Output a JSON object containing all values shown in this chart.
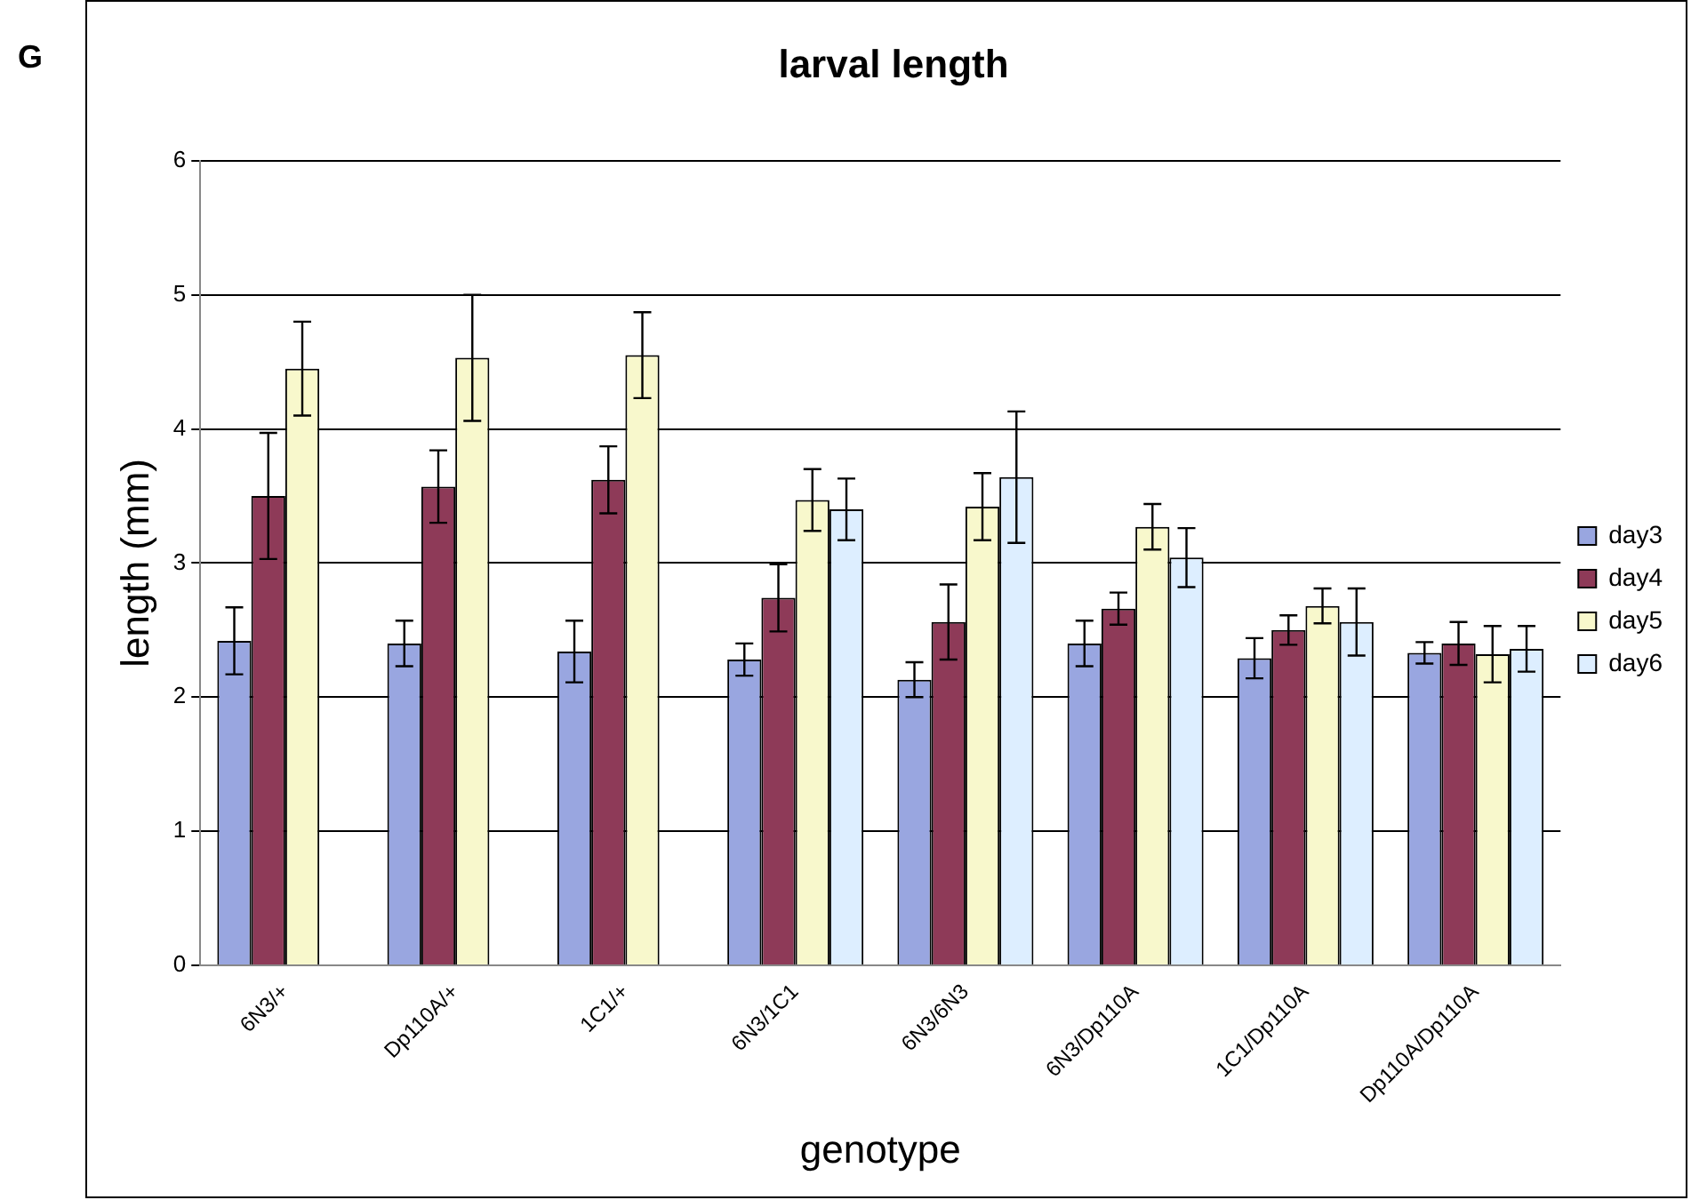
{
  "chart_data": {
    "type": "bar",
    "title": "larval length",
    "xlabel": "genotype",
    "ylabel": "length (mm)",
    "annotations": [
      "G"
    ],
    "categories": [
      "6N3/+",
      "Dp110A/+",
      "1C1/+",
      "6N3/1C1",
      "6N3/6N3",
      "6N3/Dp110A",
      "1C1/Dp110A",
      "Dp110A/Dp110A"
    ],
    "series": [
      {
        "name": "day3",
        "color": "#99a6e0",
        "values": [
          2.42,
          2.4,
          2.34,
          2.28,
          2.13,
          2.4,
          2.29,
          2.33
        ],
        "errors": [
          0.25,
          0.17,
          0.23,
          0.12,
          0.13,
          0.17,
          0.15,
          0.08
        ]
      },
      {
        "name": "day4",
        "color": "#8e3a58",
        "values": [
          3.5,
          3.57,
          3.62,
          2.74,
          2.56,
          2.66,
          2.5,
          2.4
        ],
        "errors": [
          0.47,
          0.27,
          0.25,
          0.25,
          0.28,
          0.12,
          0.11,
          0.16
        ]
      },
      {
        "name": "day5",
        "color": "#f8f8cc",
        "values": [
          4.45,
          4.53,
          4.55,
          3.47,
          3.42,
          3.27,
          2.68,
          2.32
        ],
        "errors": [
          0.35,
          0.47,
          0.32,
          0.23,
          0.25,
          0.17,
          0.13,
          0.21
        ]
      },
      {
        "name": "day6",
        "color": "#ddeeff",
        "values": [
          null,
          null,
          null,
          3.4,
          3.64,
          3.04,
          2.56,
          2.36
        ],
        "errors": [
          null,
          null,
          null,
          0.23,
          0.49,
          0.22,
          0.25,
          0.17
        ]
      }
    ],
    "ylim": [
      0,
      6
    ],
    "yticks": [
      0,
      1,
      2,
      3,
      4,
      5,
      6
    ],
    "grid": "y",
    "legend": "right"
  }
}
